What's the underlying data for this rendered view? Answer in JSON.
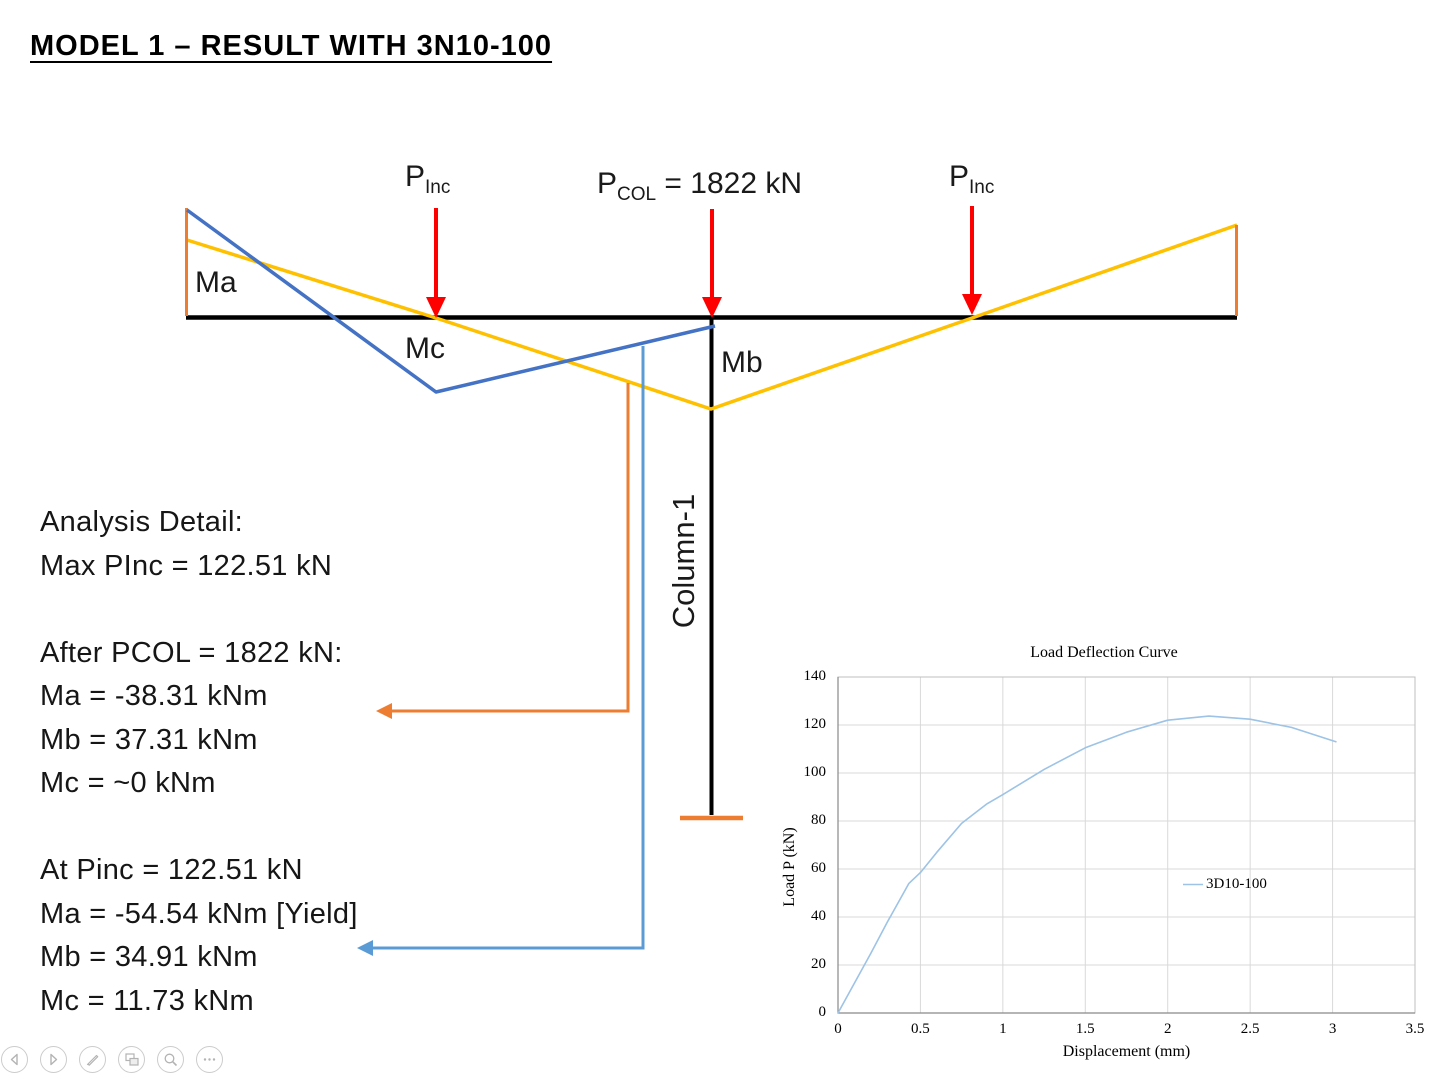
{
  "title": "MODEL 1 – RESULT WITH 3N10-100",
  "colors": {
    "beam_black": "#000000",
    "moment_blue": "#4472C4",
    "moment_yellow": "#FFC000",
    "closure_orange": "#ED7D31",
    "load_arrow_red": "#FF0000",
    "leader_blue": "#5B9BD5"
  },
  "diagram": {
    "labels": {
      "ma": "Ma",
      "mb": "Mb",
      "mc": "Mc",
      "column": "Column-1"
    },
    "loads": {
      "p_inc_left": {
        "main": "P",
        "sub": "Inc"
      },
      "p_col": {
        "main": "P",
        "sub": "COL",
        "value": " = 1822 kN"
      },
      "p_inc_right": {
        "main": "P",
        "sub": "Inc"
      }
    }
  },
  "analysis": {
    "lines": [
      "Analysis Detail:",
      "Max PInc = 122.51 kN",
      "",
      "After PCOL = 1822 kN:",
      "Ma = -38.31 kNm",
      "Mb = 37.31 kNm",
      "Mc = ~0 kNm",
      "",
      "At Pinc = 122.51 kN",
      "Ma = -54.54 kNm [Yield]",
      "Mb = 34.91 kNm",
      "Mc = 11.73 kNm"
    ]
  },
  "chart_data": {
    "type": "line",
    "title": "Load Deflection Curve",
    "xlabel": "Displacement (mm)",
    "ylabel": "Load P (kN)",
    "xlim": [
      0,
      3.5
    ],
    "ylim": [
      0,
      140
    ],
    "xticks": [
      0,
      0.5,
      1,
      1.5,
      2,
      2.5,
      3,
      3.5
    ],
    "yticks": [
      0,
      20,
      40,
      60,
      80,
      100,
      120,
      140
    ],
    "grid": true,
    "grid_color": "#D9D9D9",
    "border_color": "#BFBFBF",
    "axis_color": "#898989",
    "legend": {
      "position": "inside-right",
      "entries": [
        "3D10-100"
      ]
    },
    "series": [
      {
        "name": "3D10-100",
        "color": "#9DC3E6",
        "points": [
          [
            0,
            0
          ],
          [
            0.1,
            12.5
          ],
          [
            0.2,
            25
          ],
          [
            0.3,
            38
          ],
          [
            0.43,
            54
          ],
          [
            0.5,
            58.5
          ],
          [
            0.6,
            67
          ],
          [
            0.75,
            79
          ],
          [
            0.9,
            87
          ],
          [
            1.0,
            91
          ],
          [
            1.25,
            101.5
          ],
          [
            1.5,
            110.5
          ],
          [
            1.75,
            117
          ],
          [
            2.0,
            122
          ],
          [
            2.25,
            123.7
          ],
          [
            2.5,
            122.4
          ],
          [
            2.75,
            119
          ],
          [
            3.02,
            113
          ]
        ]
      }
    ]
  },
  "presenter_toolbar": {
    "buttons": [
      "previous",
      "next",
      "pen",
      "see-all-slides",
      "zoom",
      "more-options"
    ]
  }
}
